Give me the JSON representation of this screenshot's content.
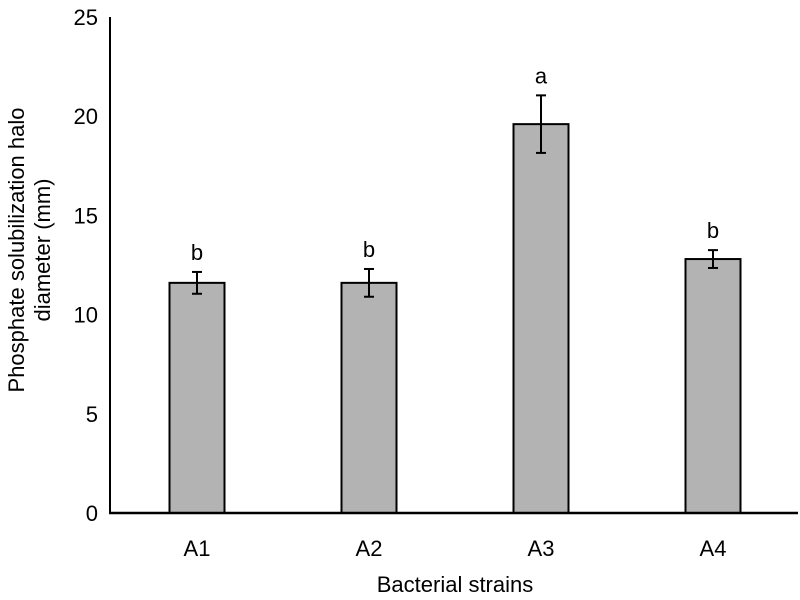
{
  "chart_data": {
    "type": "bar",
    "title": "",
    "xlabel": "Bacterial strains",
    "ylabel_lines": [
      "Phosphate solubilization halo",
      "diameter (mm)"
    ],
    "ylabel": "Phosphate solubilization halo diameter (mm)",
    "categories": [
      "A1",
      "A2",
      "A3",
      "A4"
    ],
    "values": [
      11.6,
      11.6,
      19.6,
      12.8
    ],
    "errors": [
      0.55,
      0.7,
      1.45,
      0.45
    ],
    "significance_letters": [
      "b",
      "b",
      "a",
      "b"
    ],
    "ylim": [
      0,
      25
    ],
    "yticks": [
      0,
      5,
      10,
      15,
      20,
      25
    ],
    "grid": false,
    "bar_color": "#b3b3b3",
    "edge_color": "#000000"
  }
}
